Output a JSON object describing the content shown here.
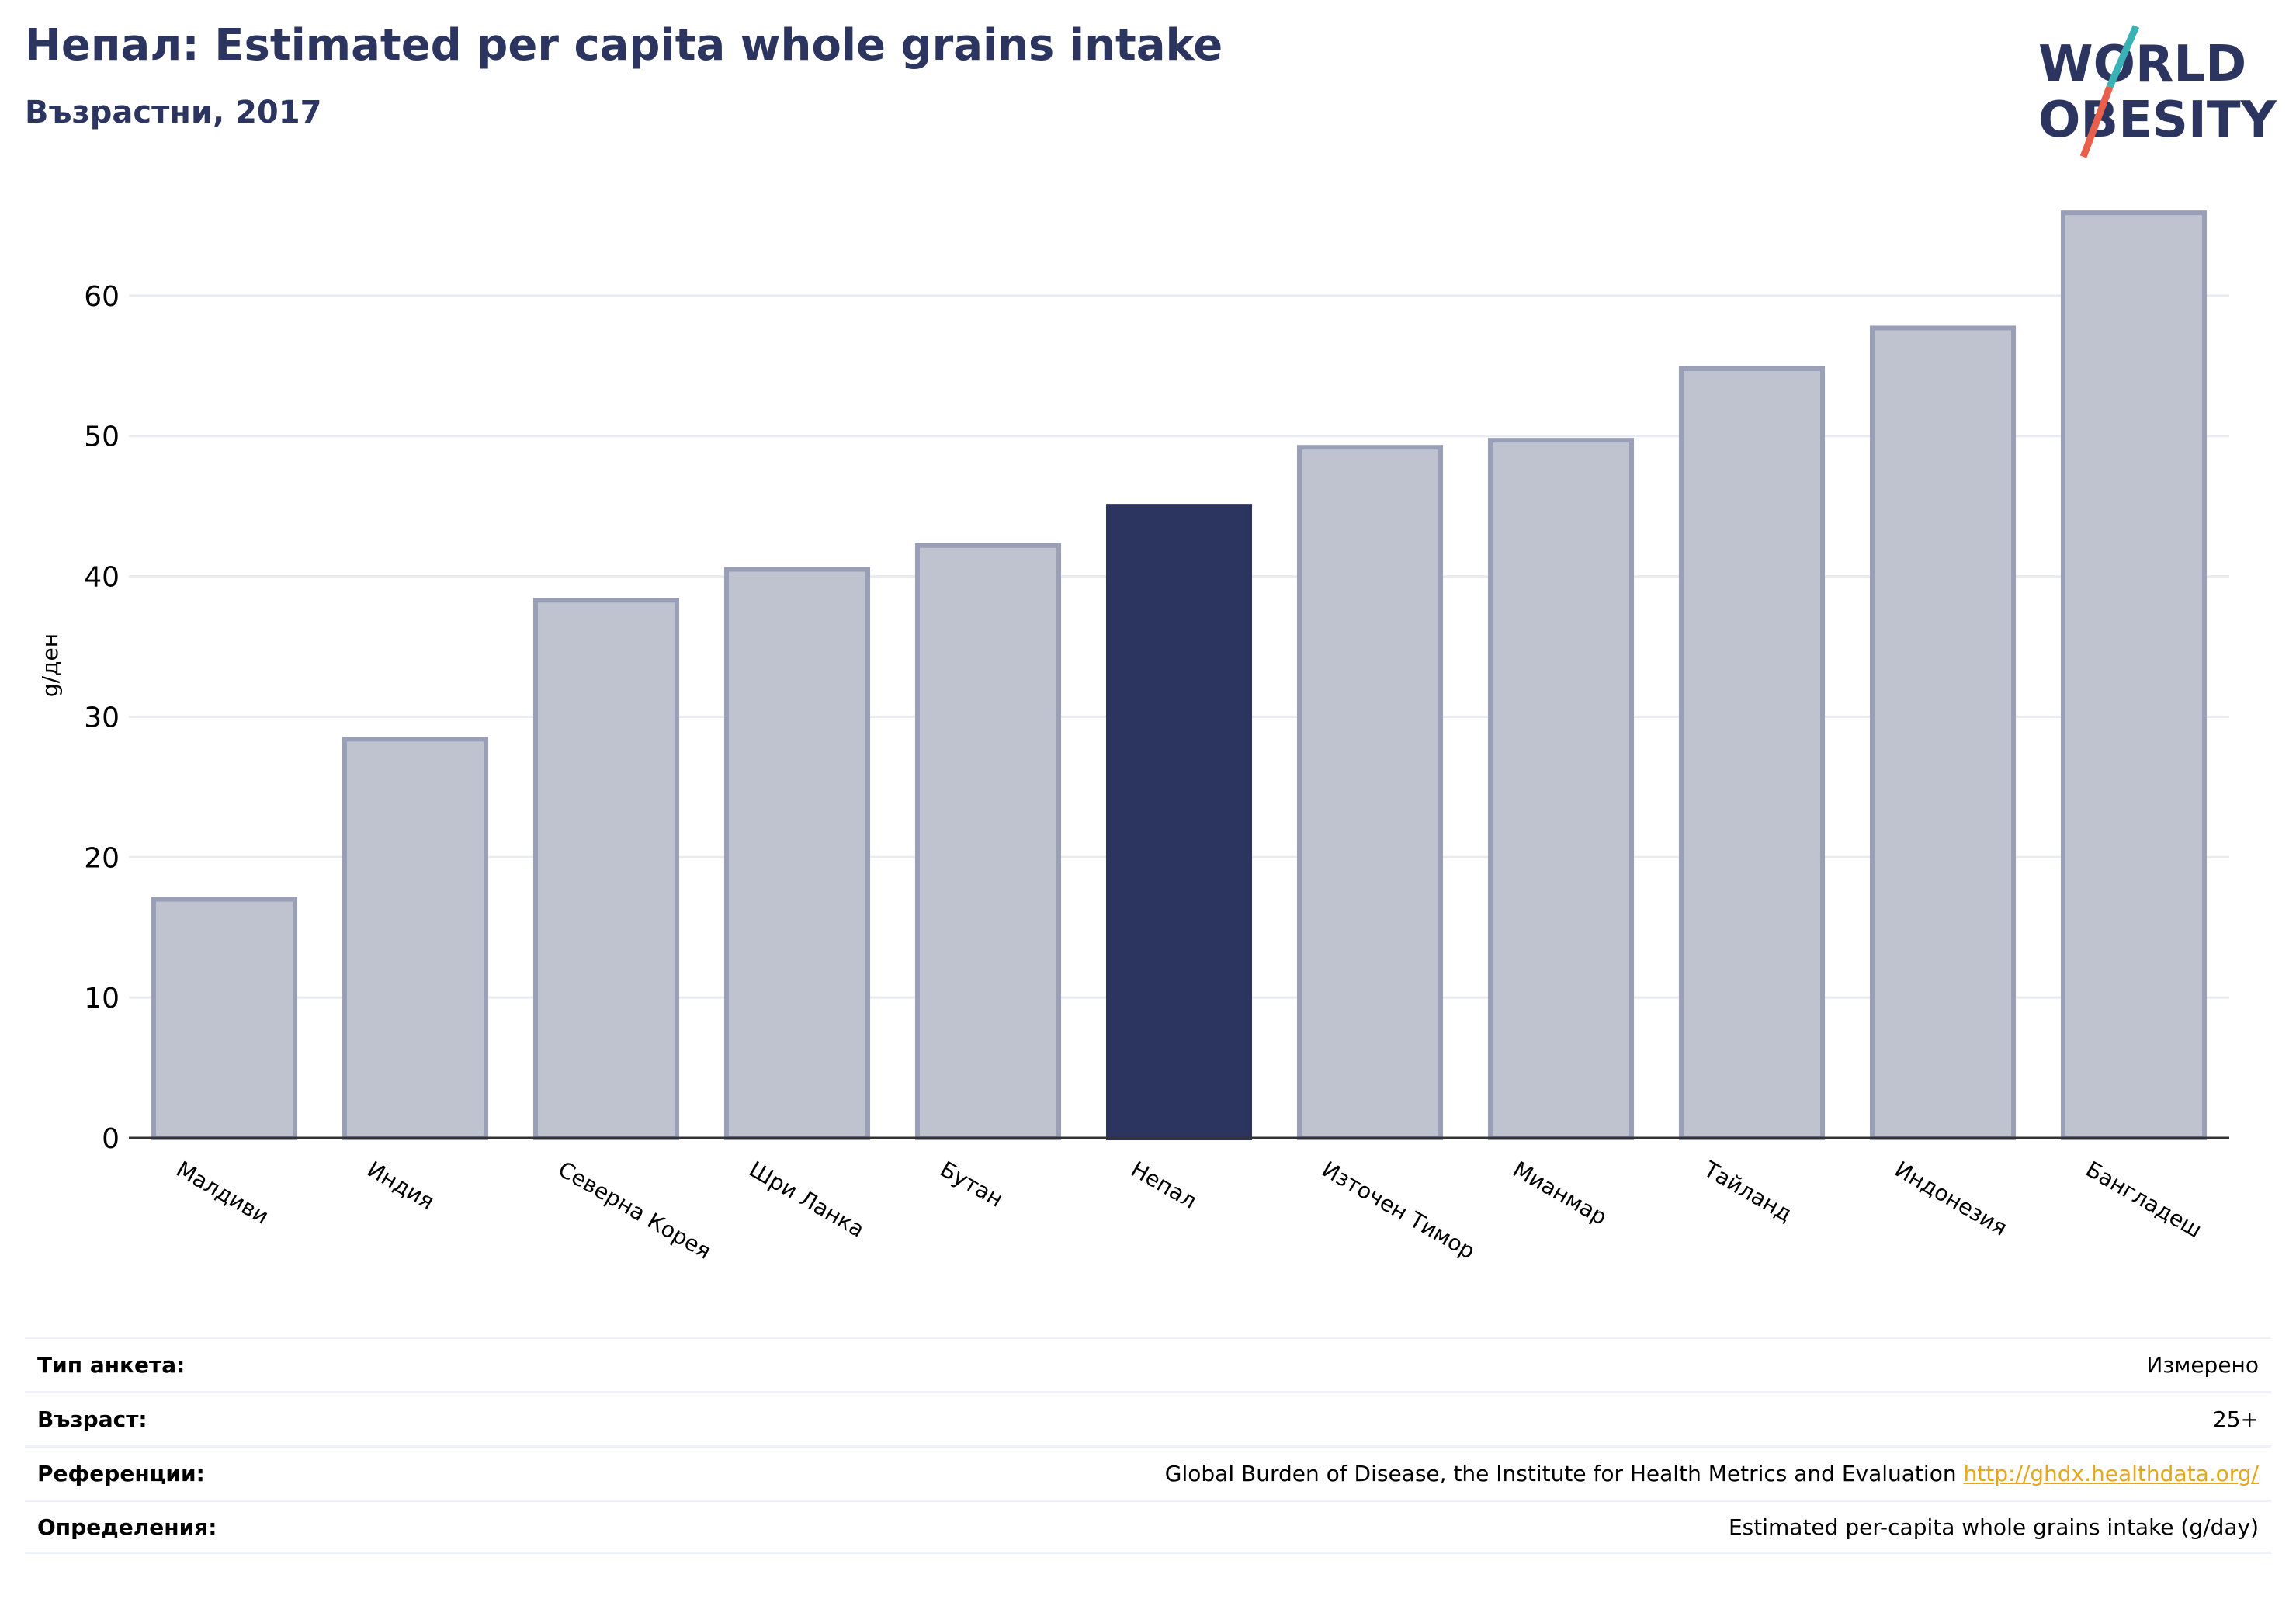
{
  "header": {
    "title": "Непал: Estimated per capita whole grains intake",
    "subtitle": "Възрастни, 2017"
  },
  "logo": {
    "line1": "WORLD",
    "line2": "OBESITY"
  },
  "colors": {
    "highlight": "#2b3560",
    "bar": "#bfc2cf",
    "bar_stroke": "#9a9fb8",
    "grid": "#e8ebef",
    "axis": "#333333"
  },
  "chart_data": {
    "type": "bar",
    "categories": [
      "Малдиви",
      "Индия",
      "Северна Корея",
      "Шри Ланка",
      "Бутан",
      "Непал",
      "Източен Тимор",
      "Мианмар",
      "Тайланд",
      "Индонезия",
      "Бангладеш"
    ],
    "values": [
      17.0,
      28.4,
      38.3,
      40.5,
      42.2,
      45.0,
      49.2,
      49.7,
      54.8,
      57.7,
      65.9
    ],
    "highlight": "Непал",
    "xlabel": "",
    "ylabel": "g/ден",
    "ylim": [
      0,
      70
    ],
    "yticks": [
      0,
      10,
      20,
      30,
      40,
      50,
      60
    ],
    "grid": true,
    "legend": "none"
  },
  "info": [
    {
      "label": "Тип анкета:",
      "value": "Измерено"
    },
    {
      "label": "Възраст:",
      "value": "25+"
    },
    {
      "label": "Референции:",
      "value": "Global Burden of Disease, the Institute for Health Metrics and Evaluation",
      "link": "http://ghdx.healthdata.org/"
    },
    {
      "label": "Определения:",
      "value": "Estimated per-capita whole grains intake (g/day)"
    }
  ]
}
